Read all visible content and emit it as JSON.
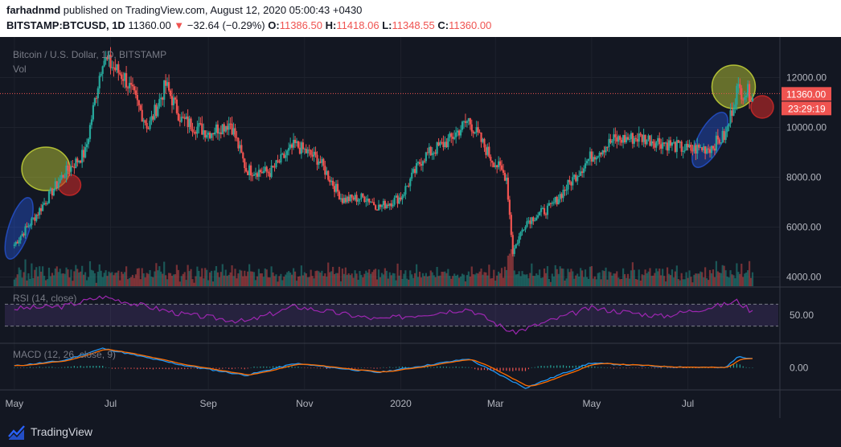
{
  "header": {
    "author": "farhadnmd",
    "published_text": " published on TradingView.com, August 12, 2020 05:00:43 +0430",
    "symbol": "BITSTAMP:BTCUSD, 1D",
    "last_price": " 11360.00 ",
    "arrow": "▼",
    "change": " −32.64 (−0.29%) ",
    "o_label": "O:",
    "o_value": "11386.50",
    "h_label": " H:",
    "h_value": "11418.06",
    "l_label": " L:",
    "l_value": "11348.55",
    "c_label": " C:",
    "c_value": "11360.00"
  },
  "chart_data": {
    "type": "candlestick",
    "title": "Bitcoin / U.S. Dollar, 1D, BITSTAMP",
    "volume_label": "Vol",
    "price_ticks": [
      "12000.00",
      "10000.00",
      "8000.00",
      "6000.00",
      "4000.00"
    ],
    "price_ylim": [
      3800,
      13400
    ],
    "x_ticks": [
      "May",
      "Jul",
      "Sep",
      "Nov",
      "2020",
      "Mar",
      "May",
      "Jul"
    ],
    "current_price_label": "11360.00",
    "countdown_label": "23:29:19",
    "series": [
      {
        "name": "BTCUSD",
        "x": [
          "2019-05-01",
          "2019-05-15",
          "2019-06-01",
          "2019-06-15",
          "2019-06-26",
          "2019-07-10",
          "2019-07-25",
          "2019-08-05",
          "2019-08-15",
          "2019-09-01",
          "2019-09-15",
          "2019-09-25",
          "2019-10-10",
          "2019-10-26",
          "2019-11-10",
          "2019-11-25",
          "2019-12-10",
          "2019-12-18",
          "2020-01-01",
          "2020-01-15",
          "2020-02-01",
          "2020-02-13",
          "2020-02-27",
          "2020-03-08",
          "2020-03-12",
          "2020-03-20",
          "2020-04-05",
          "2020-04-30",
          "2020-05-15",
          "2020-06-01",
          "2020-06-15",
          "2020-07-01",
          "2020-07-15",
          "2020-07-25",
          "2020-08-01",
          "2020-08-11"
        ],
        "values": [
          5300,
          6500,
          8100,
          9000,
          12800,
          12000,
          10000,
          11700,
          10300,
          9800,
          10200,
          8300,
          8200,
          9300,
          8700,
          7100,
          7200,
          6800,
          7200,
          8800,
          9500,
          10300,
          8800,
          8000,
          5000,
          6200,
          6800,
          8800,
          9500,
          9600,
          9400,
          9100,
          9200,
          9700,
          11500,
          11360
        ]
      },
      {
        "name": "RSI (14, close)",
        "ticks": [
          "50.00"
        ],
        "ylim": [
          0,
          100
        ],
        "bands": [
          30,
          70
        ],
        "x": [
          "2019-05-01",
          "2019-06-01",
          "2019-06-26",
          "2019-08-15",
          "2019-09-25",
          "2019-10-26",
          "2019-12-18",
          "2020-02-13",
          "2020-03-12",
          "2020-04-30",
          "2020-06-15",
          "2020-07-25",
          "2020-08-01",
          "2020-08-11"
        ],
        "values": [
          62,
          66,
          84,
          52,
          38,
          66,
          42,
          62,
          18,
          63,
          48,
          70,
          76,
          56
        ]
      },
      {
        "name": "MACD (12, 26, close, 9)",
        "ticks": [
          "0.00"
        ],
        "ylim": [
          -900,
          1000
        ],
        "x": [
          "2019-05-01",
          "2019-06-01",
          "2019-06-26",
          "2019-08-15",
          "2019-09-25",
          "2019-10-26",
          "2019-12-18",
          "2020-02-13",
          "2020-03-20",
          "2020-04-30",
          "2020-06-15",
          "2020-07-25",
          "2020-08-01",
          "2020-08-11"
        ],
        "values": [
          80,
          300,
          820,
          120,
          -320,
          180,
          -200,
          380,
          -850,
          200,
          50,
          0,
          450,
          420
        ]
      }
    ]
  },
  "footer": {
    "brand": "TradingView"
  }
}
